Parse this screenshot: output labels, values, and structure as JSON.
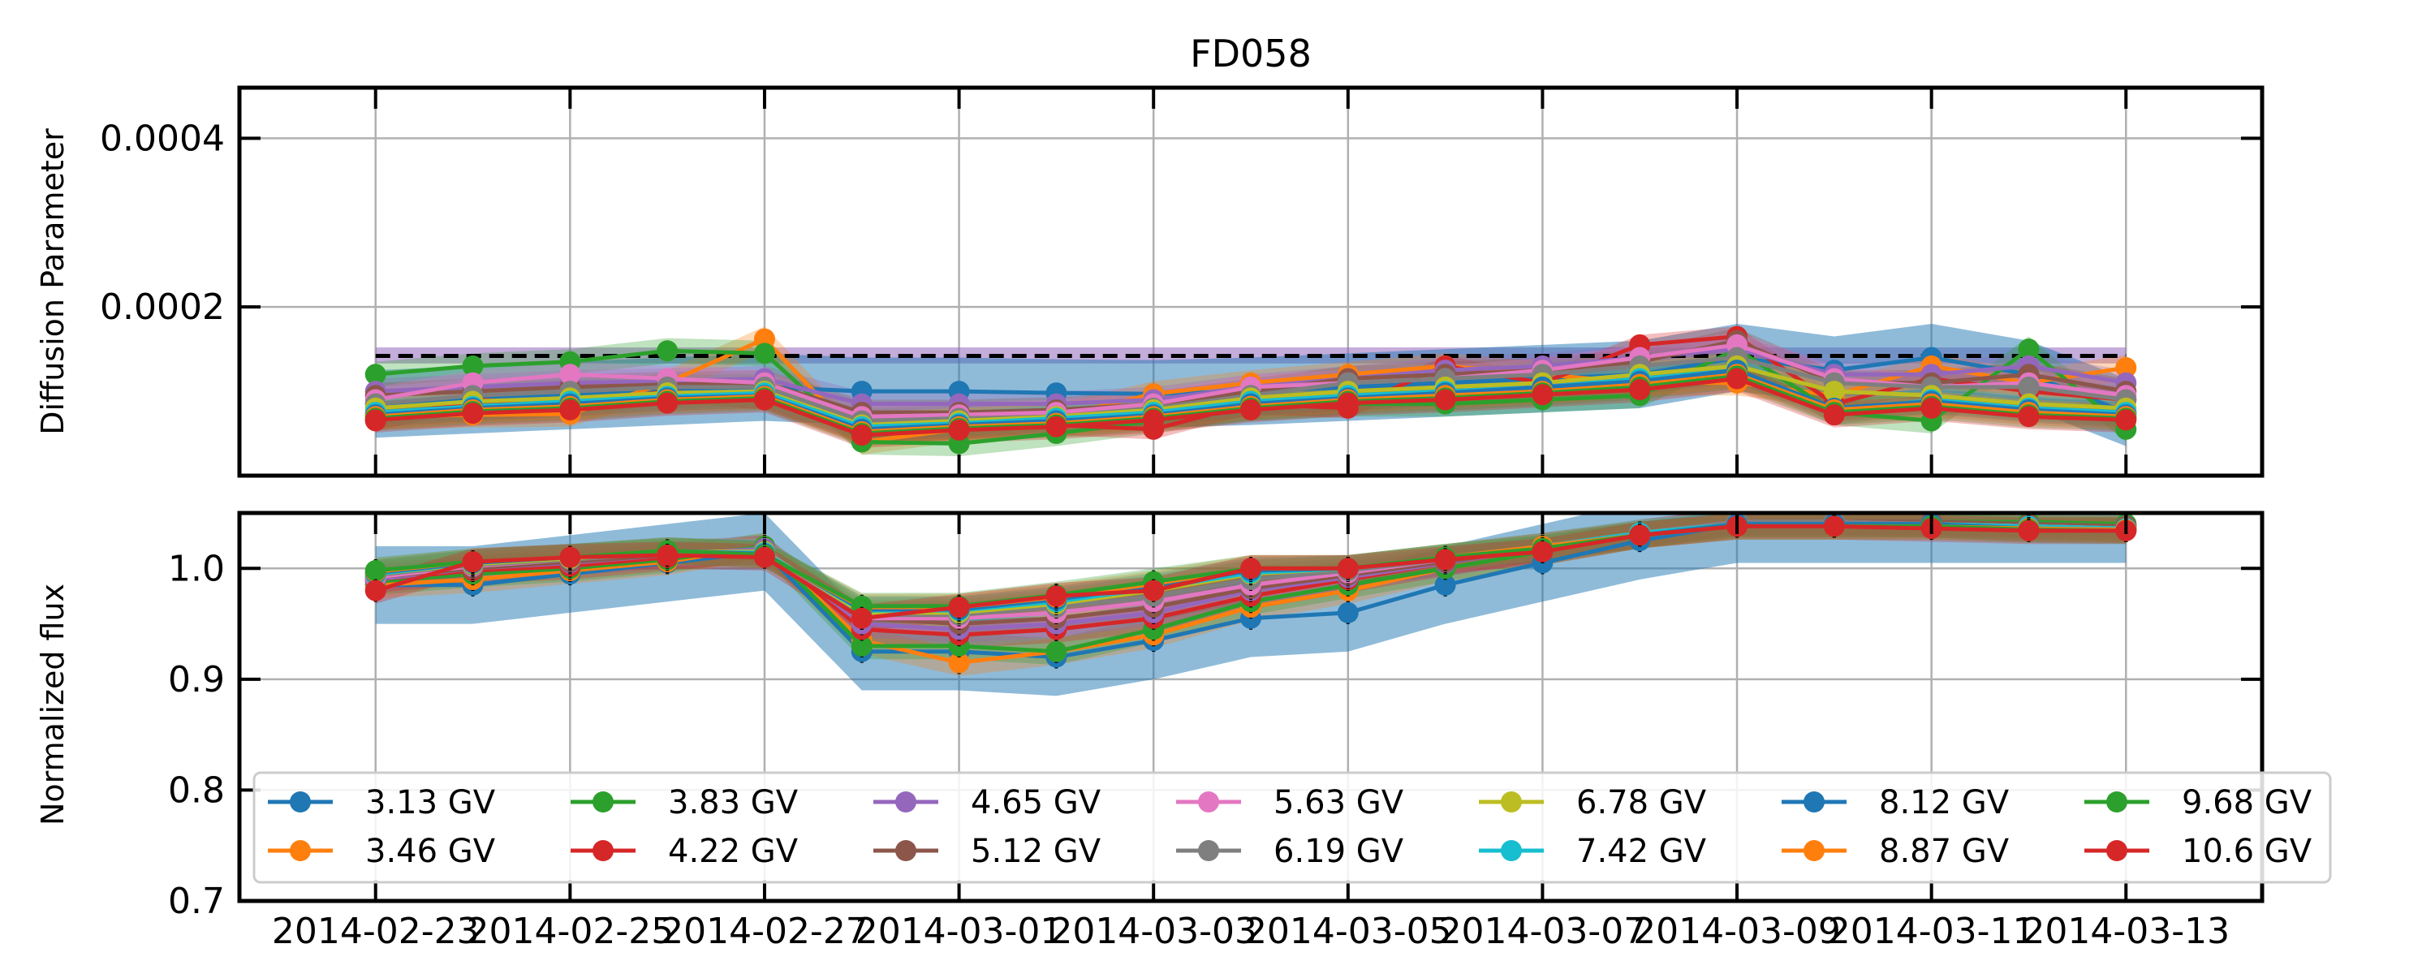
{
  "chart_data": {
    "type": "line",
    "title": "FD058",
    "x": [
      "2014-02-23",
      "2014-02-24",
      "2014-02-25",
      "2014-02-26",
      "2014-02-27",
      "2014-02-28",
      "2014-03-01",
      "2014-03-02",
      "2014-03-03",
      "2014-03-04",
      "2014-03-05",
      "2014-03-06",
      "2014-03-07",
      "2014-03-08",
      "2014-03-09",
      "2014-03-10",
      "2014-03-11",
      "2014-03-12",
      "2014-03-13"
    ],
    "x_ticks": [
      "2014-02-23",
      "2014-02-25",
      "2014-02-27",
      "2014-03-01",
      "2014-03-03",
      "2014-03-05",
      "2014-03-07",
      "2014-03-09",
      "2014-03-11",
      "2014-03-13"
    ],
    "grid": true,
    "legend": {
      "placement": "lower-center",
      "columns": 7
    },
    "colors": [
      "#1f77b4",
      "#ff7f0e",
      "#2ca02c",
      "#d62728",
      "#9467bd",
      "#8c564b",
      "#e377c2",
      "#7f7f7f",
      "#bcbd22",
      "#17becf"
    ],
    "series_names": [
      "3.13 GV",
      "3.46 GV",
      "3.83 GV",
      "4.22 GV",
      "4.65 GV",
      "5.12 GV",
      "5.63 GV",
      "6.19 GV",
      "6.78 GV",
      "7.42 GV",
      "8.12 GV",
      "8.87 GV",
      "9.68 GV",
      "10.6 GV"
    ],
    "diffusion": {
      "ylabel": "Diffusion Parameter",
      "ylim": [
        0.0,
        0.00046
      ],
      "yticks": [
        0.0002,
        0.0004
      ],
      "ytick_labels": [
        "0.0002",
        "0.0004"
      ],
      "reference": {
        "value": 0.000142,
        "style": "dashed",
        "color": "#000000"
      },
      "reference_band": {
        "low": 0.000133,
        "high": 0.000152,
        "color": "#9467bd"
      },
      "series": [
        {
          "name": "3.13 GV",
          "values": [
            8.5e-05,
            9e-05,
            9.5e-05,
            0.0001,
            0.000105,
            0.0001,
            0.0001,
            9.8e-05,
            9.7e-05,
            0.0001,
            0.000105,
            0.00011,
            0.000115,
            0.00012,
            0.00014,
            0.000125,
            0.00014,
            0.00012,
            7.5e-05
          ],
          "band": 4e-05
        },
        {
          "name": "3.46 GV",
          "values": [
            7e-05,
            7.2e-05,
            7.3e-05,
            0.00011,
            0.000162,
            4e-05,
            5.5e-05,
            7e-05,
            9.7e-05,
            0.00011,
            0.00012,
            0.00013,
            0.00012,
            0.00011,
            0.00011,
            9.5e-05,
            0.00013,
            0.00011,
            0.000128
          ],
          "band": 1.5e-05
        },
        {
          "name": "3.83 GV",
          "values": [
            0.00012,
            0.00013,
            0.000135,
            0.000148,
            0.000145,
            4e-05,
            3.8e-05,
            5e-05,
            6.5e-05,
            8e-05,
            8.5e-05,
            8.5e-05,
            9e-05,
            9.5e-05,
            0.00015,
            7.5e-05,
            6.5e-05,
            0.00015,
            5.5e-05
          ],
          "band": 1.5e-05
        },
        {
          "name": "4.22 GV",
          "values": [
            6.5e-05,
            9e-05,
            8.5e-05,
            0.0001,
            9e-05,
            5e-05,
            5.5e-05,
            6e-05,
            5.5e-05,
            8.5e-05,
            8e-05,
            0.00013,
            0.00011,
            0.000155,
            0.000165,
            8.5e-05,
            0.000115,
            0.0001,
            9e-05
          ],
          "band": 1.2e-05
        },
        {
          "name": "4.65 GV",
          "values": [
            0.0001,
            0.000105,
            0.00011,
            0.000112,
            0.000115,
            8.5e-05,
            8.5e-05,
            8.5e-05,
            9e-05,
            0.000105,
            0.000115,
            0.000125,
            0.00013,
            0.00014,
            0.00015,
            0.00012,
            0.00012,
            0.00013,
            0.00011
          ],
          "band": 1.5e-05
        },
        {
          "name": "5.12 GV",
          "values": [
            9.5e-05,
            0.0001,
            0.000105,
            0.000108,
            0.00011,
            7.5e-05,
            7.5e-05,
            7.8e-05,
            8.5e-05,
            0.0001,
            0.000115,
            0.00012,
            0.000125,
            0.000135,
            0.00016,
            0.00011,
            0.00011,
            0.00012,
            0.0001
          ],
          "band": 1.5e-05
        },
        {
          "name": "5.63 GV",
          "values": [
            9e-05,
            0.00011,
            0.00012,
            0.000115,
            0.00011,
            7e-05,
            7.2e-05,
            7.5e-05,
            8.5e-05,
            0.000105,
            0.00011,
            0.000115,
            0.000125,
            0.00014,
            0.000155,
            0.000115,
            0.000105,
            0.00011,
            9.5e-05
          ],
          "band": 1.5e-05
        },
        {
          "name": "6.19 GV",
          "values": [
            8.5e-05,
            9.5e-05,
            0.0001,
            0.000105,
            0.000105,
            6.5e-05,
            6.8e-05,
            7e-05,
            8e-05,
            9.5e-05,
            0.00011,
            0.000115,
            0.00012,
            0.00013,
            0.00014,
            0.00011,
            0.000105,
            0.000105,
            9e-05
          ],
          "band": 1.5e-05
        },
        {
          "name": "6.78 GV",
          "values": [
            8e-05,
            8.8e-05,
            9.2e-05,
            9.8e-05,
            0.0001,
            6e-05,
            6.5e-05,
            7e-05,
            7.8e-05,
            9.2e-05,
            0.0001,
            0.000105,
            0.00011,
            0.00012,
            0.00013,
            0.0001,
            9.5e-05,
            8.5e-05,
            8e-05
          ],
          "band": 1.5e-05
        },
        {
          "name": "7.42 GV",
          "values": [
            7.5e-05,
            8.2e-05,
            8.8e-05,
            9.4e-05,
            9.8e-05,
            5.8e-05,
            6.2e-05,
            6.8e-05,
            7.5e-05,
            8.8e-05,
            9.5e-05,
            0.0001,
            0.000105,
            0.000115,
            0.000125,
            7.5e-05,
            9e-05,
            8e-05,
            7.5e-05
          ],
          "band": 1.5e-05
        },
        {
          "name": "8.12 GV",
          "values": [
            7.2e-05,
            8e-05,
            8.5e-05,
            9.2e-05,
            9.5e-05,
            5.5e-05,
            6e-05,
            6.5e-05,
            7.2e-05,
            8.5e-05,
            9.2e-05,
            9.8e-05,
            0.000105,
            0.000112,
            0.000125,
            8e-05,
            8.8e-05,
            7.8e-05,
            7.2e-05
          ],
          "band": 1.5e-05
        },
        {
          "name": "8.87 GV",
          "values": [
            7e-05,
            7.8e-05,
            8.2e-05,
            9e-05,
            9.4e-05,
            5.2e-05,
            5.8e-05,
            6.2e-05,
            7e-05,
            8.2e-05,
            9e-05,
            9.5e-05,
            0.0001,
            0.000108,
            0.00012,
            7.8e-05,
            8.5e-05,
            7.5e-05,
            7e-05
          ],
          "band": 1.5e-05
        },
        {
          "name": "9.68 GV",
          "values": [
            6.8e-05,
            7.6e-05,
            8e-05,
            8.8e-05,
            9.2e-05,
            5e-05,
            5.6e-05,
            6e-05,
            6.8e-05,
            8e-05,
            8.8e-05,
            9.2e-05,
            9.8e-05,
            0.000105,
            0.000118,
            7.5e-05,
            8.2e-05,
            7.2e-05,
            6.8e-05
          ],
          "band": 1.5e-05
        },
        {
          "name": "10.6 GV",
          "values": [
            6.6e-05,
            7.4e-05,
            7.8e-05,
            8.6e-05,
            9e-05,
            4.8e-05,
            5.4e-05,
            5.8e-05,
            6.6e-05,
            7.8e-05,
            8.6e-05,
            9e-05,
            9.6e-05,
            0.000102,
            0.000115,
            7.2e-05,
            8e-05,
            7e-05,
            6.6e-05
          ],
          "band": 1.5e-05
        }
      ]
    },
    "flux": {
      "ylabel": "Normalized flux",
      "ylim": [
        0.7,
        1.05
      ],
      "yticks": [
        0.7,
        0.8,
        0.9,
        1.0
      ],
      "ytick_labels": [
        "0.7",
        "0.8",
        "0.9",
        "1.0"
      ],
      "series": [
        {
          "name": "3.13 GV",
          "values": [
            0.985,
            0.985,
            0.995,
            1.005,
            1.015,
            0.925,
            0.925,
            0.92,
            0.935,
            0.955,
            0.96,
            0.985,
            1.005,
            1.025,
            1.04,
            1.04,
            1.04,
            1.04,
            1.04
          ],
          "band": 0.035
        },
        {
          "name": "3.46 GV",
          "values": [
            0.985,
            0.99,
            0.998,
            1.006,
            1.02,
            0.935,
            0.915,
            0.925,
            0.94,
            0.965,
            0.98,
            1.0,
            1.015,
            1.03,
            1.04,
            1.04,
            1.04,
            1.04,
            1.035
          ],
          "band": 0.012
        },
        {
          "name": "3.83 GV",
          "values": [
            0.988,
            0.995,
            1.0,
            1.008,
            1.02,
            0.93,
            0.93,
            0.925,
            0.945,
            0.97,
            0.985,
            1.0,
            1.015,
            1.03,
            1.042,
            1.042,
            1.042,
            1.042,
            1.04
          ],
          "band": 0.012
        },
        {
          "name": "4.22 GV",
          "values": [
            0.99,
            0.998,
            1.002,
            1.01,
            1.018,
            0.945,
            0.94,
            0.945,
            0.955,
            0.975,
            0.99,
            1.005,
            1.018,
            1.032,
            1.042,
            1.042,
            1.042,
            1.04,
            1.038
          ],
          "band": 0.012
        },
        {
          "name": "4.65 GV",
          "values": [
            0.99,
            1.0,
            1.005,
            1.012,
            1.018,
            0.95,
            0.945,
            0.95,
            0.96,
            0.98,
            0.992,
            1.005,
            1.018,
            1.032,
            1.042,
            1.042,
            1.042,
            1.04,
            1.038
          ],
          "band": 0.012
        },
        {
          "name": "5.12 GV",
          "values": [
            0.992,
            1.0,
            1.006,
            1.012,
            1.016,
            0.955,
            0.95,
            0.955,
            0.965,
            0.982,
            0.994,
            1.006,
            1.018,
            1.032,
            1.042,
            1.042,
            1.042,
            1.04,
            1.038
          ],
          "band": 0.012
        },
        {
          "name": "5.63 GV",
          "values": [
            0.992,
            1.002,
            1.008,
            1.014,
            1.016,
            0.955,
            0.955,
            0.96,
            0.97,
            0.985,
            0.996,
            1.008,
            1.02,
            1.032,
            1.042,
            1.042,
            1.04,
            1.038,
            1.036
          ],
          "band": 0.012
        },
        {
          "name": "6.19 GV",
          "values": [
            0.994,
            1.003,
            1.008,
            1.014,
            1.016,
            0.958,
            0.958,
            0.965,
            0.975,
            0.99,
            0.998,
            1.008,
            1.02,
            1.032,
            1.042,
            1.042,
            1.04,
            1.038,
            1.036
          ],
          "band": 0.012
        },
        {
          "name": "6.78 GV",
          "values": [
            0.995,
            1.004,
            1.009,
            1.015,
            1.015,
            0.96,
            0.96,
            0.968,
            0.98,
            0.995,
            1.0,
            1.01,
            1.02,
            1.032,
            1.04,
            1.04,
            1.04,
            1.038,
            1.036
          ],
          "band": 0.012
        },
        {
          "name": "7.42 GV",
          "values": [
            0.995,
            1.005,
            1.01,
            1.015,
            1.014,
            0.962,
            0.962,
            0.97,
            0.982,
            0.996,
            1.0,
            1.01,
            1.02,
            1.032,
            1.04,
            1.04,
            1.04,
            1.038,
            1.036
          ],
          "band": 0.012
        },
        {
          "name": "8.12 GV",
          "values": [
            0.996,
            1.005,
            1.01,
            1.016,
            1.013,
            0.963,
            0.963,
            0.972,
            0.984,
            0.998,
            1.0,
            1.01,
            1.02,
            1.03,
            1.04,
            1.04,
            1.04,
            1.036,
            1.035
          ],
          "band": 0.012
        },
        {
          "name": "8.87 GV",
          "values": [
            0.997,
            1.006,
            1.01,
            1.016,
            1.012,
            0.965,
            0.965,
            0.974,
            0.986,
            1.0,
            1.0,
            1.01,
            1.02,
            1.03,
            1.038,
            1.038,
            1.038,
            1.036,
            1.035
          ],
          "band": 0.012
        },
        {
          "name": "9.68 GV",
          "values": [
            0.998,
            1.006,
            1.01,
            1.016,
            1.012,
            0.966,
            0.966,
            0.976,
            0.988,
            1.0,
            1.0,
            1.01,
            1.018,
            1.03,
            1.038,
            1.038,
            1.038,
            1.035,
            1.034
          ],
          "band": 0.012
        },
        {
          "name": "10.6 GV",
          "values": [
            0.98,
            1.006,
            1.01,
            1.012,
            1.01,
            0.955,
            0.965,
            0.975,
            0.98,
            1.0,
            1.0,
            1.008,
            1.015,
            1.03,
            1.038,
            1.038,
            1.036,
            1.034,
            1.034
          ],
          "band": 0.012
        }
      ]
    }
  }
}
